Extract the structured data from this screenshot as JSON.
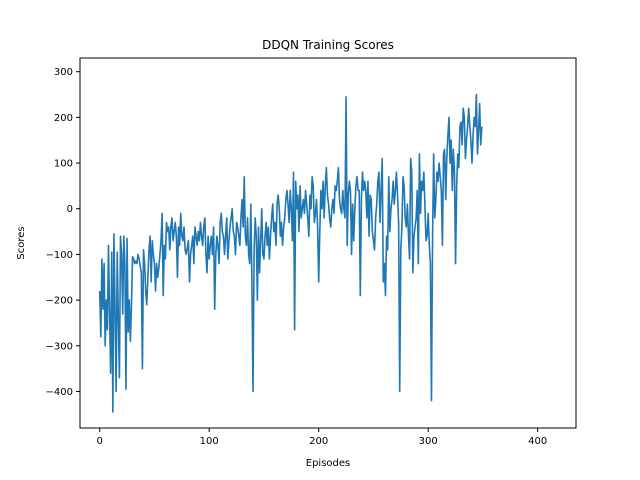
{
  "chart_data": {
    "type": "line",
    "title": "DDQN Training Scores",
    "xlabel": "Episodes",
    "ylabel": "Scores",
    "xlim": [
      -18,
      435
    ],
    "ylim": [
      -480,
      330
    ],
    "xticks": [
      0,
      100,
      200,
      300,
      400
    ],
    "yticks": [
      -400,
      -300,
      -200,
      -100,
      0,
      100,
      200,
      300
    ],
    "grid": false,
    "legend": "none",
    "series": [
      {
        "color": "#1f77b4",
        "x_start": 0,
        "x_step": 1,
        "values": [
          -180,
          -280,
          -110,
          -220,
          -120,
          -300,
          -200,
          -265,
          -80,
          -230,
          -360,
          -95,
          -445,
          -55,
          -220,
          -400,
          -95,
          -240,
          -370,
          -60,
          -100,
          -230,
          -60,
          -120,
          -395,
          -65,
          -270,
          -200,
          -290,
          -210,
          -105,
          -110,
          -120,
          -115,
          -120,
          -100,
          -110,
          -125,
          -140,
          -350,
          -90,
          -120,
          -180,
          -210,
          -150,
          -90,
          -60,
          -160,
          -70,
          -100,
          -120,
          -180,
          -120,
          -150,
          -130,
          -100,
          -70,
          -10,
          -190,
          -80,
          -110,
          -30,
          -50,
          -40,
          -90,
          -40,
          -20,
          -70,
          -50,
          -30,
          -60,
          -150,
          -40,
          -80,
          -10,
          -60,
          -70,
          -40,
          -90,
          -100,
          -85,
          -70,
          -160,
          -100,
          -80,
          -60,
          -120,
          -40,
          -60,
          -80,
          -50,
          -70,
          -30,
          -60,
          -80,
          -40,
          -20,
          -100,
          -140,
          -60,
          -110,
          -80,
          -60,
          -100,
          -40,
          -220,
          -100,
          -60,
          -80,
          -120,
          -30,
          -10,
          -50,
          -60,
          -100,
          -60,
          -20,
          -110,
          -70,
          -40,
          -20,
          0,
          -50,
          -60,
          -100,
          -30,
          -40,
          -60,
          -80,
          -20,
          20,
          -40,
          70,
          -60,
          -80,
          -20,
          -100,
          -120,
          10,
          -160,
          -400,
          -90,
          -20,
          -60,
          -200,
          -40,
          -140,
          -70,
          0,
          -100,
          -110,
          -60,
          -30,
          -80,
          -40,
          -110,
          -60,
          -20,
          10,
          -50,
          -30,
          -80,
          10,
          30,
          0,
          -60,
          -30,
          -80,
          -40,
          -20,
          20,
          40,
          10,
          -30,
          40,
          0,
          -70,
          80,
          -265,
          60,
          0,
          30,
          -50,
          50,
          -20,
          0,
          20,
          -10,
          40,
          10,
          -20,
          -60,
          30,
          0,
          70,
          50,
          -30,
          -10,
          20,
          -40,
          -160,
          -50,
          40,
          0,
          60,
          -20,
          50,
          90,
          30,
          10,
          -20,
          -40,
          0,
          20,
          -10,
          50,
          40,
          60,
          90,
          20,
          0,
          -10,
          40,
          0,
          -20,
          245,
          -80,
          30,
          60,
          40,
          -100,
          10,
          -70,
          0,
          50,
          70,
          40,
          40,
          -190,
          20,
          80,
          40,
          60,
          40,
          -20,
          60,
          -60,
          30,
          20,
          -50,
          -70,
          -90,
          -20,
          10,
          60,
          80,
          -30,
          40,
          110,
          -160,
          -120,
          -190,
          -60,
          -90,
          70,
          -50,
          0,
          20,
          60,
          10,
          40,
          80,
          30,
          -30,
          -400,
          -90,
          -40,
          70,
          50,
          -20,
          -40,
          10,
          -60,
          -110,
          110,
          80,
          -140,
          -60,
          -40,
          -20,
          40,
          -120,
          120,
          -10,
          60,
          40,
          80,
          10,
          -70,
          -60,
          -10,
          -80,
          -120,
          -420,
          -60,
          120,
          -20,
          20,
          80,
          60,
          100,
          70,
          40,
          -80,
          120,
          130,
          20,
          110,
          160,
          200,
          100,
          150,
          40,
          130,
          80,
          -120,
          50,
          120,
          90,
          180,
          190,
          140,
          220,
          200,
          110,
          150,
          180,
          220,
          180,
          150,
          100,
          160,
          200,
          180,
          250,
          120,
          170,
          230,
          140,
          180
        ]
      }
    ]
  }
}
